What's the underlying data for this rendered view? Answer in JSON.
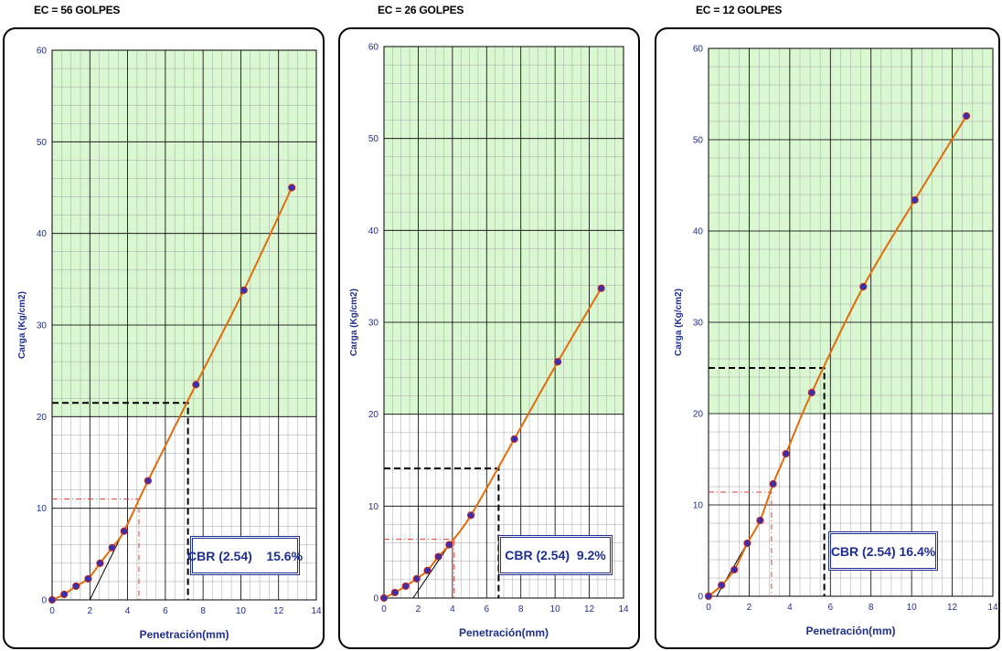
{
  "chart_data": [
    {
      "type": "line",
      "panel_title": "EC = 56 GOLPES",
      "xlabel": "Penetración(mm)",
      "ylabel": "Carga (Kg/cm2)",
      "xlim": [
        0,
        14
      ],
      "ylim": [
        0,
        60
      ],
      "xticks": [
        "0",
        "2",
        "4",
        "6",
        "8",
        "10",
        "12",
        "14"
      ],
      "yticks": [
        "0",
        "10",
        "20",
        "30",
        "40",
        "50",
        "60"
      ],
      "grid": true,
      "series": [
        {
          "x": [
            0,
            0.64,
            1.27,
            1.91,
            2.54,
            3.18,
            3.81,
            5.08,
            7.62,
            10.16,
            12.7
          ],
          "y": [
            0,
            0.6,
            1.5,
            2.3,
            4.0,
            5.7,
            7.5,
            13.0,
            23.5,
            33.8,
            45.0
          ]
        }
      ],
      "tangent": {
        "x": [
          2.0,
          5.1
        ],
        "y": [
          0,
          13.0
        ]
      },
      "guide_black": {
        "x": 7.2,
        "y": 21.5
      },
      "guide_red": {
        "x": 4.6,
        "y": 11.0
      },
      "cbr_label": "CBR (2.54)",
      "cbr_value": "15.6%"
    },
    {
      "type": "line",
      "panel_title": "EC = 26 GOLPES",
      "xlabel": "Penetración(mm)",
      "ylabel": "Carga (Kg/cm2)",
      "xlim": [
        0,
        14
      ],
      "ylim": [
        0,
        60
      ],
      "xticks": [
        "0",
        "2",
        "4",
        "6",
        "8",
        "10",
        "12",
        "14"
      ],
      "yticks": [
        "0",
        "10",
        "20",
        "30",
        "40",
        "50",
        "60"
      ],
      "grid": true,
      "series": [
        {
          "x": [
            0,
            0.64,
            1.27,
            1.91,
            2.54,
            3.18,
            3.81,
            5.08,
            7.62,
            10.16,
            12.7
          ],
          "y": [
            0,
            0.6,
            1.3,
            2.1,
            3.0,
            4.5,
            5.8,
            9.0,
            17.3,
            25.7,
            33.7
          ]
        }
      ],
      "tangent": {
        "x": [
          1.7,
          4.0
        ],
        "y": [
          0,
          6.3
        ]
      },
      "guide_black": {
        "x": 6.7,
        "y": 14.1
      },
      "guide_red": {
        "x": 4.1,
        "y": 6.4
      },
      "cbr_label": "CBR (2.54)",
      "cbr_value": "9.2%"
    },
    {
      "type": "line",
      "panel_title": "EC = 12 GOLPES",
      "xlabel": "Penetración(mm)",
      "ylabel": "Carga (Kg/cm2)",
      "xlim": [
        0,
        14
      ],
      "ylim": [
        0,
        60
      ],
      "xticks": [
        "0",
        "2",
        "4",
        "6",
        "8",
        "10",
        "12",
        "14"
      ],
      "yticks": [
        "0",
        "10",
        "20",
        "30",
        "40",
        "50",
        "60"
      ],
      "grid": true,
      "series": [
        {
          "x": [
            0,
            0.64,
            1.27,
            1.91,
            2.54,
            3.18,
            3.81,
            5.08,
            7.62,
            10.16,
            12.7
          ],
          "y": [
            0,
            1.2,
            2.9,
            5.8,
            8.3,
            12.3,
            15.6,
            22.3,
            33.9,
            43.4,
            52.6
          ]
        }
      ],
      "tangent": {
        "x": [
          0.4,
          1.9
        ],
        "y": [
          0,
          5.8
        ]
      },
      "guide_black": {
        "x": 5.7,
        "y": 25.0
      },
      "guide_red": {
        "x": 3.1,
        "y": 11.4
      },
      "cbr_label": "CBR (2.54)",
      "cbr_value": "16.4%"
    }
  ],
  "colors": {
    "plot_bg": "#d9f7d0",
    "grid_major": "#000000",
    "grid_minor": "#a6a6a6",
    "curve": "#e36c0a",
    "marker": "#3a2fb0",
    "marker_edge": "#c0281e",
    "guide_black": "#000000",
    "guide_red": "#e03a3a",
    "axis_text": "#1f2f8f",
    "tangent_highlight": "#8fd0e0"
  }
}
